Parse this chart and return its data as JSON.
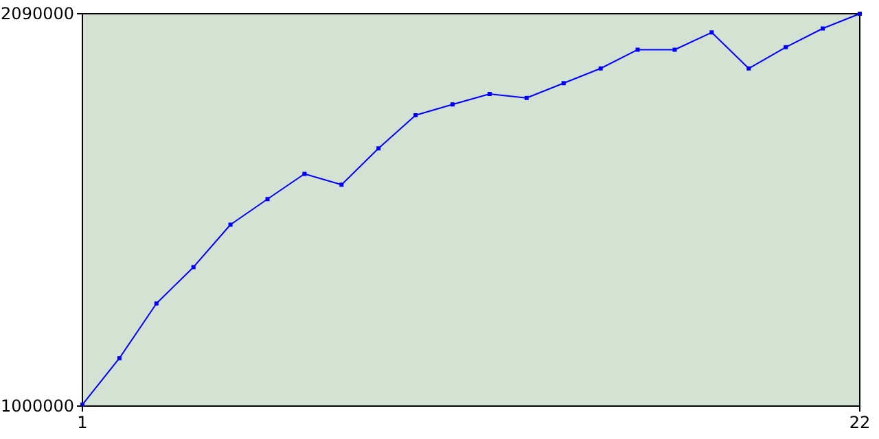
{
  "chart_data": {
    "type": "line",
    "x": [
      1,
      2,
      3,
      4,
      5,
      6,
      7,
      8,
      9,
      10,
      11,
      12,
      13,
      14,
      15,
      16,
      17,
      18,
      19,
      20,
      21,
      22
    ],
    "series": [
      {
        "color": "#0000ff",
        "values": [
          1004000,
          1133000,
          1285000,
          1386000,
          1504000,
          1575000,
          1645000,
          1615000,
          1716000,
          1808000,
          1838000,
          1867000,
          1856000,
          1897000,
          1938000,
          1990000,
          1990000,
          2038000,
          1938000,
          1997000,
          2049000,
          2090000
        ]
      }
    ],
    "xlim": [
      1,
      22
    ],
    "xticks": [
      1,
      22
    ],
    "ylim": [
      1000000,
      2090000
    ],
    "yticks": [
      1000000,
      2090000
    ],
    "grid": false,
    "marker": "square",
    "line_style": "solid"
  }
}
